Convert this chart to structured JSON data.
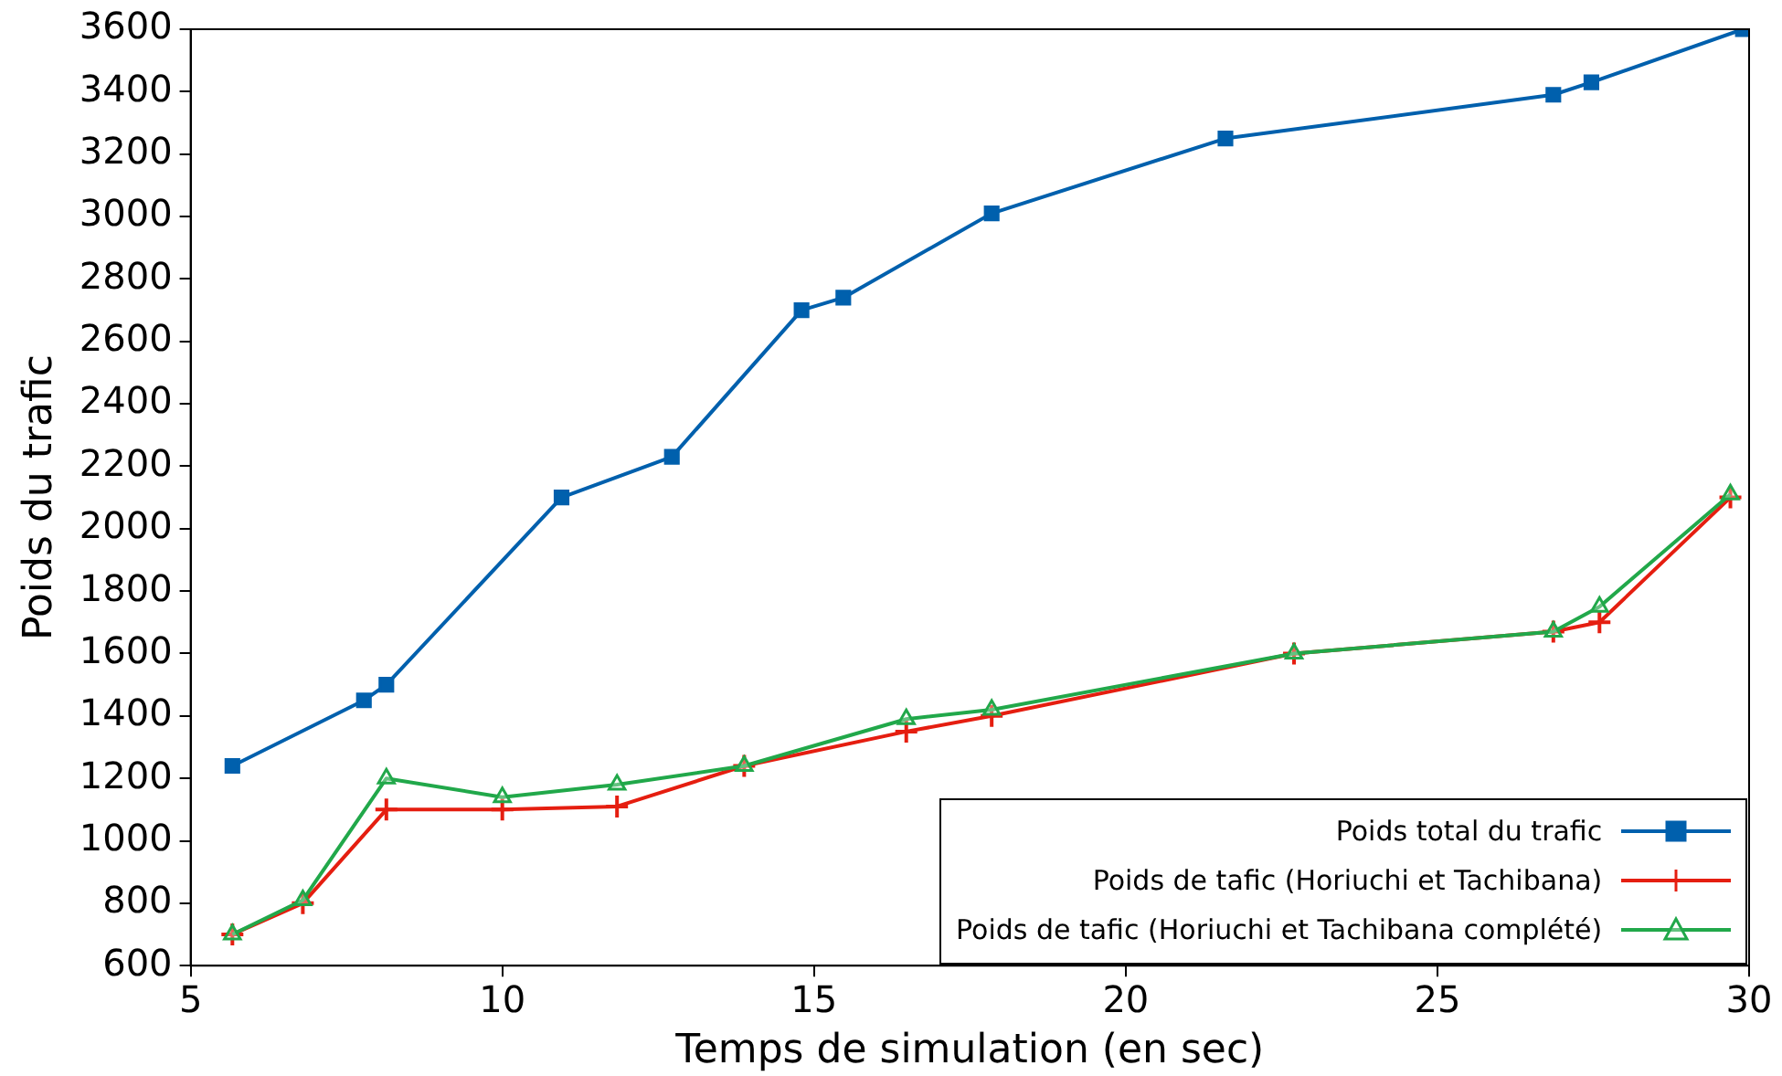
{
  "chart_data": {
    "type": "line",
    "xlabel": "Temps de simulation (en sec)",
    "ylabel": "Poids du trafic",
    "xlim": [
      5,
      30
    ],
    "xticks": [
      5,
      10,
      15,
      20,
      25,
      30
    ],
    "ylim": [
      600,
      3600
    ],
    "yticks": [
      600,
      800,
      1000,
      1200,
      1400,
      1600,
      1800,
      2000,
      2200,
      2400,
      2600,
      2800,
      3000,
      3200,
      3400,
      3600
    ],
    "grid": false,
    "legend": "bottom right",
    "series": [
      {
        "name": "Poids total du trafic",
        "color": "#0060ad",
        "marker": "square",
        "x": [
          5.67,
          7.78,
          8.14,
          10.95,
          12.72,
          14.8,
          15.47,
          17.85,
          21.6,
          26.86,
          27.47,
          29.9
        ],
        "values": [
          1240,
          1450,
          1500,
          2100,
          2230,
          2700,
          2740,
          3010,
          3250,
          3390,
          3430,
          3600
        ]
      },
      {
        "name": "Poids de tafic (Horiuchi et Tachibana)",
        "color": "#e51e10",
        "marker": "cross",
        "x": [
          5.67,
          6.8,
          8.14,
          10.0,
          11.84,
          13.88,
          16.48,
          17.85,
          22.7,
          26.86,
          27.6,
          29.7
        ],
        "values": [
          700,
          800,
          1100,
          1100,
          1110,
          1240,
          1350,
          1400,
          1600,
          1670,
          1700,
          2100
        ]
      },
      {
        "name": "Poids de tafic (Horiuchi et Tachibana complété)",
        "color": "#21a84a",
        "marker": "triangle",
        "x": [
          5.67,
          6.8,
          8.14,
          10.0,
          11.84,
          13.88,
          16.48,
          17.85,
          22.7,
          26.86,
          27.6,
          29.7
        ],
        "values": [
          700,
          810,
          1200,
          1140,
          1180,
          1240,
          1390,
          1420,
          1600,
          1670,
          1750,
          2110
        ]
      }
    ]
  }
}
